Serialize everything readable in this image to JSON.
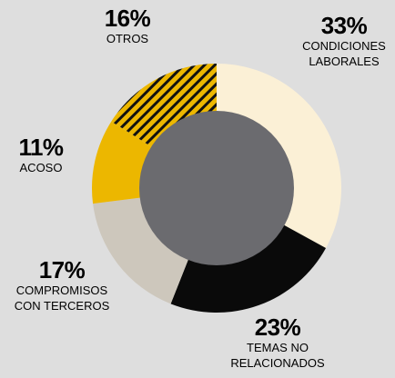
{
  "chart_data": {
    "type": "donut",
    "categories": [
      "CONDICIONES LABORALES",
      "TEMAS NO RELACIONADOS",
      "COMPROMISOS CON TERCEROS",
      "ACOSO",
      "OTROS"
    ],
    "values": [
      33,
      23,
      17,
      11,
      16
    ],
    "value_labels": [
      "33%",
      "23%",
      "17%",
      "11%",
      "16%"
    ],
    "colors": [
      "#fbf0d6",
      "#0a0a0a",
      "#cdc7bc",
      "#ecb700",
      "hatched"
    ]
  }
}
